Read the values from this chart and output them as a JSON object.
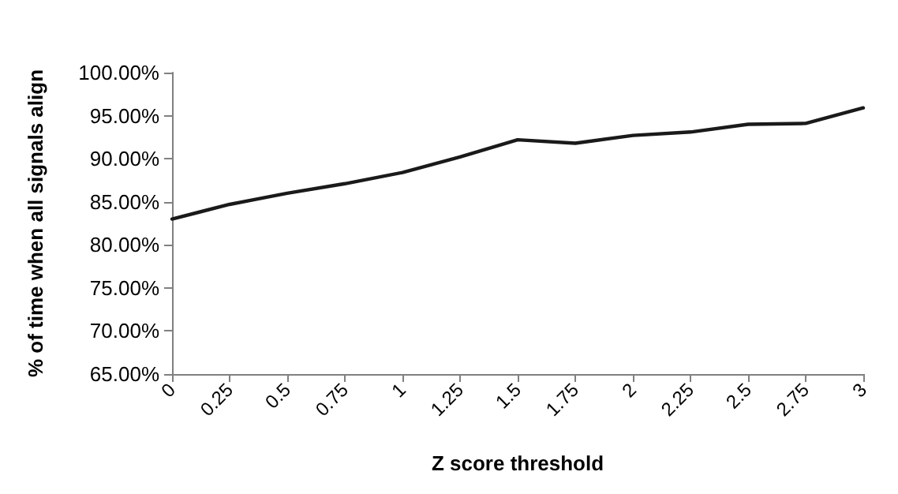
{
  "chart_data": {
    "type": "line",
    "xlabel": "Z score threshold",
    "ylabel": "% of time when all signals align",
    "categories": [
      "0",
      "0.25",
      "0.5",
      "0.75",
      "1",
      "1.25",
      "1.5",
      "1.75",
      "2",
      "2.25",
      "2.5",
      "2.75",
      "3"
    ],
    "series": [
      {
        "color": "#1a1a1a",
        "values": [
          83.0,
          84.7,
          86.0,
          87.1,
          88.4,
          90.2,
          92.2,
          91.8,
          92.7,
          93.1,
          94.0,
          94.1,
          95.9
        ]
      }
    ],
    "ylim": [
      65,
      100
    ],
    "yticks": [
      {
        "value": 65,
        "label": "65.00%"
      },
      {
        "value": 70,
        "label": "70.00%"
      },
      {
        "value": 75,
        "label": "75.00%"
      },
      {
        "value": 80,
        "label": "80.00%"
      },
      {
        "value": 85,
        "label": "85.00%"
      },
      {
        "value": 90,
        "label": "90.00%"
      },
      {
        "value": 95,
        "label": "95.00%"
      },
      {
        "value": 100,
        "label": "100.00%"
      }
    ],
    "marker": "none",
    "line_style": "solid"
  }
}
